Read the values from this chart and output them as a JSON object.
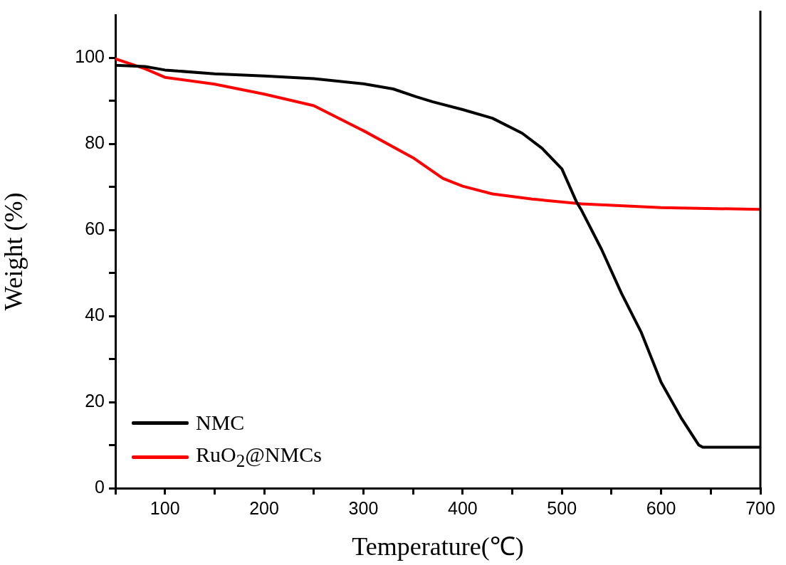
{
  "chart_data": {
    "type": "line",
    "xlabel": "Temperature(℃)",
    "ylabel": "Weight (%)",
    "xlim": [
      50,
      700
    ],
    "ylim": [
      0,
      110
    ],
    "xticks": [
      {
        "value": 50,
        "label": null
      },
      100,
      {
        "value": 150,
        "label": null
      },
      200,
      {
        "value": 250,
        "label": null
      },
      300,
      {
        "value": 350,
        "label": null
      },
      400,
      {
        "value": 450,
        "label": null
      },
      500,
      {
        "value": 550,
        "label": null
      },
      600,
      {
        "value": 650,
        "label": null
      },
      700
    ],
    "yticks": [
      0,
      {
        "value": 10,
        "label": null
      },
      20,
      {
        "value": 30,
        "label": null
      },
      40,
      {
        "value": 50,
        "label": null
      },
      60,
      {
        "value": 70,
        "label": null
      },
      80,
      {
        "value": 90,
        "label": null
      },
      100
    ],
    "grid": false,
    "legend": "bottom left",
    "marker": "none",
    "line_style": "solid",
    "series": [
      {
        "name": "NMC",
        "color": "#000000",
        "x": [
          50,
          80,
          100,
          150,
          200,
          250,
          300,
          330,
          353,
          370,
          400,
          430,
          460,
          480,
          500,
          515,
          520,
          540,
          560,
          580,
          600,
          620,
          638,
          642,
          700
        ],
        "values": [
          98.3,
          98,
          97.2,
          96.3,
          95.8,
          95.2,
          94,
          92.8,
          91,
          89.8,
          88,
          86,
          82.5,
          79,
          74.2,
          66.4,
          64.5,
          55.5,
          45.3,
          36.2,
          24.6,
          16.4,
          10,
          9.5,
          9.5
        ]
      },
      {
        "name": "RuO$_{2}$@NMCs",
        "color": "#ff0000",
        "x": [
          50,
          80,
          100,
          150,
          200,
          250,
          300,
          350,
          380,
          400,
          430,
          470,
          520,
          600,
          700
        ],
        "values": [
          99.8,
          97.5,
          95.5,
          93.9,
          91.6,
          88.9,
          83.1,
          76.8,
          72,
          70.2,
          68.4,
          67.2,
          66.1,
          65.2,
          64.8
        ]
      }
    ]
  }
}
